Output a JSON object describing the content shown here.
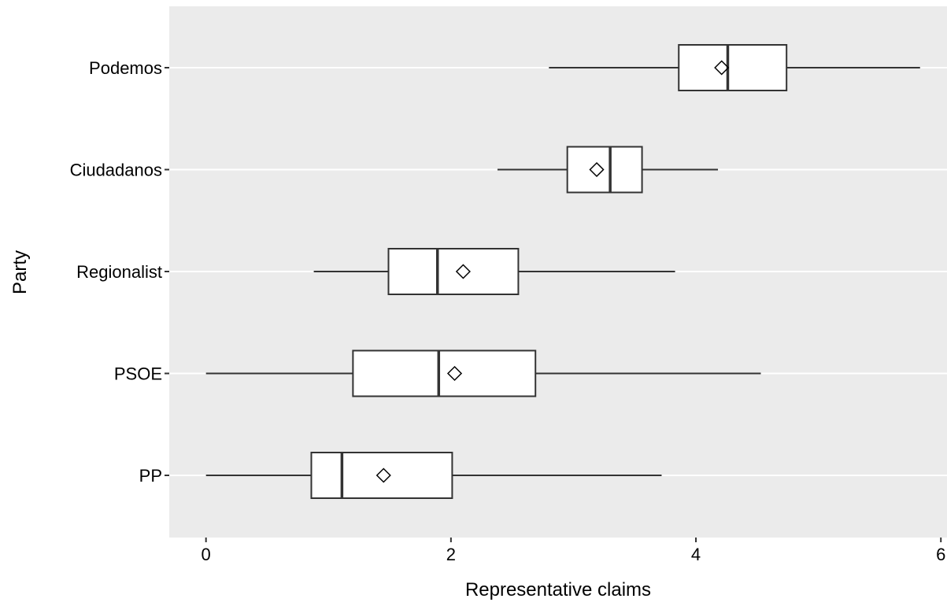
{
  "chart_data": {
    "type": "boxplot",
    "orientation": "horizontal",
    "xlabel": "Representative claims",
    "ylabel": "Party",
    "xlim": [
      -0.3,
      6.05
    ],
    "xticks": [
      0,
      2,
      4,
      6
    ],
    "xtick_labels": [
      "0",
      "2",
      "4",
      "6"
    ],
    "grid": true,
    "legend": "none",
    "categories": [
      "Podemos",
      "Ciudadanos",
      "Regionalist",
      "PSOE",
      "PP"
    ],
    "boxes": [
      {
        "category": "Podemos",
        "whisker_low": 2.8,
        "q1": 3.86,
        "median": 4.26,
        "q3": 4.74,
        "whisker_high": 5.83,
        "mean": 4.21
      },
      {
        "category": "Ciudadanos",
        "whisker_low": 2.38,
        "q1": 2.95,
        "median": 3.3,
        "q3": 3.56,
        "whisker_high": 4.18,
        "mean": 3.19
      },
      {
        "category": "Regionalist",
        "whisker_low": 0.88,
        "q1": 1.49,
        "median": 1.89,
        "q3": 2.55,
        "whisker_high": 3.83,
        "mean": 2.1
      },
      {
        "category": "PSOE",
        "whisker_low": 0.0,
        "q1": 1.2,
        "median": 1.9,
        "q3": 2.69,
        "whisker_high": 4.53,
        "mean": 2.03
      },
      {
        "category": "PP",
        "whisker_low": 0.0,
        "q1": 0.86,
        "median": 1.11,
        "q3": 2.01,
        "whisker_high": 3.72,
        "mean": 1.45
      }
    ],
    "colors": {
      "panel_background": "#ebebeb",
      "grid_line": "#ffffff",
      "box_fill": "#ffffff",
      "box_stroke": "#333333",
      "tick_mark": "#333333"
    }
  }
}
